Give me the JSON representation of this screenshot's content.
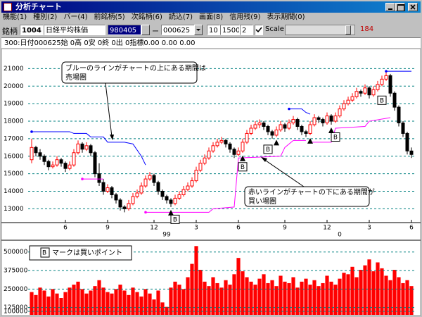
{
  "window": {
    "title": "分析チャート"
  },
  "menu": [
    "機能(1)",
    "種別(2)",
    "バー(4)",
    "前銘柄(5)",
    "次銘柄(6)",
    "読込(7)",
    "画面(8)",
    "信用残(9)",
    "表示期間(0)"
  ],
  "toolbar": {
    "code_label": "銘柄",
    "code": "1004",
    "name": "日経平均株価",
    "date_from": "980405",
    "dash": "ー",
    "date_to": "000625",
    "n1": "10",
    "n2": "1500",
    "n3": "2",
    "scale": "Scale",
    "count": "184"
  },
  "info": "300:日付000625始 0高 0安 0終 0出 0指標0.00  0.00  0.00",
  "annotations": [
    {
      "lines": [
        "ブルーのラインがチャートの上にある期間は",
        "売場圏"
      ]
    },
    {
      "lines": [
        "赤いラインがチャートの下にある期間が",
        "買い場圏"
      ]
    }
  ],
  "chart_data": [
    {
      "type": "candlestick",
      "up_color": "#ff0000",
      "down_color": "#000000",
      "grid": true,
      "ylim": [
        12250,
        21500
      ],
      "yticks": [
        13000,
        14000,
        15000,
        16000,
        17000,
        18000,
        19000,
        20000,
        21000
      ],
      "xlim": [
        0,
        90
      ],
      "xticks": [
        {
          "value": 8,
          "label": "6"
        },
        {
          "value": 18,
          "label": "9"
        },
        {
          "value": 29,
          "label": "12"
        },
        {
          "value": 39,
          "label": "3"
        },
        {
          "value": 49,
          "label": "6"
        },
        {
          "value": 60,
          "label": "9"
        },
        {
          "value": 70,
          "label": "12"
        },
        {
          "value": 80,
          "label": "3"
        },
        {
          "value": 90,
          "label": "6"
        }
      ],
      "year_ticks": [
        {
          "value": 32,
          "label": "99"
        },
        {
          "value": 73,
          "label": "0"
        }
      ],
      "ohlc": [
        [
          15800,
          17000,
          15600,
          16500
        ],
        [
          16500,
          16600,
          16000,
          16200
        ],
        [
          16200,
          16400,
          15800,
          16000
        ],
        [
          16000,
          16100,
          15500,
          15700
        ],
        [
          15700,
          15800,
          15200,
          15400
        ],
        [
          15400,
          15700,
          15300,
          15500
        ],
        [
          15500,
          16000,
          15400,
          15800
        ],
        [
          15800,
          15900,
          15400,
          15600
        ],
        [
          15600,
          15700,
          15100,
          15300
        ],
        [
          15300,
          15700,
          15200,
          15500
        ],
        [
          15500,
          16400,
          15400,
          16200
        ],
        [
          16200,
          16900,
          16100,
          16700
        ],
        [
          16700,
          16800,
          16200,
          16400
        ],
        [
          16400,
          16800,
          16300,
          16600
        ],
        [
          16600,
          16700,
          16000,
          16200
        ],
        [
          16200,
          16300,
          14800,
          15000
        ],
        [
          15000,
          15600,
          14300,
          14500
        ],
        [
          14500,
          14700,
          13800,
          14000
        ],
        [
          14000,
          14400,
          13900,
          14200
        ],
        [
          14200,
          14300,
          13600,
          13800
        ],
        [
          13800,
          13900,
          13300,
          13500
        ],
        [
          13500,
          13600,
          12900,
          13100
        ],
        [
          13100,
          13200,
          12800,
          13000
        ],
        [
          13000,
          13500,
          12900,
          13300
        ],
        [
          13300,
          13900,
          13200,
          13700
        ],
        [
          13700,
          14100,
          13600,
          13900
        ],
        [
          13900,
          14500,
          13800,
          14300
        ],
        [
          14300,
          14900,
          14200,
          14700
        ],
        [
          14700,
          15100,
          14600,
          14900
        ],
        [
          14900,
          15000,
          14300,
          14500
        ],
        [
          14500,
          14600,
          13800,
          14000
        ],
        [
          14000,
          14100,
          13500,
          13700
        ],
        [
          13700,
          13800,
          13300,
          13500
        ],
        [
          13500,
          13600,
          13100,
          13300
        ],
        [
          13300,
          13800,
          13200,
          13600
        ],
        [
          13600,
          14000,
          13500,
          13800
        ],
        [
          13800,
          14300,
          13700,
          14100
        ],
        [
          14100,
          14500,
          14000,
          14300
        ],
        [
          14300,
          14800,
          14200,
          14600
        ],
        [
          14600,
          15400,
          14500,
          15200
        ],
        [
          15200,
          15800,
          15100,
          15600
        ],
        [
          15600,
          16100,
          15500,
          15900
        ],
        [
          15900,
          16500,
          15800,
          16300
        ],
        [
          16300,
          16800,
          16200,
          16600
        ],
        [
          16600,
          17000,
          16500,
          16800
        ],
        [
          16800,
          17100,
          16700,
          16900
        ],
        [
          16900,
          17000,
          16500,
          16700
        ],
        [
          16700,
          16800,
          16200,
          16400
        ],
        [
          16400,
          16500,
          15900,
          16100
        ],
        [
          16100,
          16500,
          16000,
          16300
        ],
        [
          16300,
          17000,
          16200,
          16800
        ],
        [
          16800,
          17500,
          16700,
          17300
        ],
        [
          17300,
          17800,
          17200,
          17600
        ],
        [
          17600,
          18000,
          17500,
          17800
        ],
        [
          17800,
          18100,
          17600,
          17900
        ],
        [
          17900,
          18000,
          17500,
          17700
        ],
        [
          17700,
          17800,
          17200,
          17400
        ],
        [
          17400,
          17500,
          17000,
          17200
        ],
        [
          17200,
          17700,
          17100,
          17500
        ],
        [
          17500,
          18000,
          17400,
          17800
        ],
        [
          17800,
          17900,
          17400,
          17600
        ],
        [
          17600,
          18100,
          17500,
          17900
        ],
        [
          17900,
          18300,
          17800,
          18100
        ],
        [
          18100,
          18200,
          17500,
          17700
        ],
        [
          17700,
          17800,
          17200,
          17400
        ],
        [
          17400,
          17500,
          17100,
          17300
        ],
        [
          17300,
          18000,
          17200,
          17800
        ],
        [
          17800,
          18400,
          17700,
          18200
        ],
        [
          18200,
          18300,
          17900,
          18100
        ],
        [
          18100,
          18200,
          17700,
          17900
        ],
        [
          17900,
          18500,
          17800,
          18300
        ],
        [
          18300,
          18400,
          17800,
          18000
        ],
        [
          18000,
          18500,
          17900,
          18300
        ],
        [
          18300,
          18900,
          18200,
          18700
        ],
        [
          18700,
          19200,
          18600,
          19000
        ],
        [
          19000,
          19400,
          18900,
          19200
        ],
        [
          19200,
          19600,
          19100,
          19400
        ],
        [
          19400,
          19900,
          19300,
          19700
        ],
        [
          19700,
          19800,
          19400,
          19600
        ],
        [
          19600,
          20100,
          19500,
          19900
        ],
        [
          19900,
          20000,
          19300,
          19500
        ],
        [
          19500,
          20000,
          19400,
          19800
        ],
        [
          19800,
          20300,
          19700,
          20100
        ],
        [
          20100,
          20600,
          20000,
          20400
        ],
        [
          20400,
          20900,
          20300,
          20600
        ],
        [
          20600,
          20700,
          19400,
          19600
        ],
        [
          19600,
          19700,
          18600,
          18800
        ],
        [
          18800,
          18900,
          17700,
          17900
        ],
        [
          17900,
          18000,
          17100,
          17300
        ],
        [
          17300,
          17400,
          16100,
          16300
        ],
        [
          16300,
          16500,
          15900,
          16100
        ]
      ],
      "series": [
        {
          "color": "#0000ff",
          "x": [
            0,
            9,
            10,
            13,
            14,
            17,
            18,
            22,
            24,
            26,
            27
          ],
          "values": [
            17400,
            17400,
            17300,
            17300,
            17100,
            17100,
            16800,
            16800,
            16700,
            16000,
            15500
          ]
        },
        {
          "color": "#0000ff",
          "x": [
            61,
            64,
            65,
            66
          ],
          "values": [
            18700,
            18700,
            18500,
            18400
          ]
        },
        {
          "color": "#0000ff",
          "x": [
            84,
            90
          ],
          "values": [
            20850,
            20850
          ]
        },
        {
          "color": "#ff00ff",
          "x": [
            12,
            17
          ],
          "values": [
            14700,
            14700
          ]
        },
        {
          "color": "#ff00ff",
          "x": [
            27,
            42,
            43,
            48,
            49,
            59,
            60,
            62,
            65
          ],
          "values": [
            12800,
            12800,
            13000,
            13100,
            15900,
            16000,
            16500,
            16900,
            16900
          ]
        },
        {
          "color": "#ff00ff",
          "x": [
            66,
            71,
            72,
            79,
            80,
            85
          ],
          "values": [
            16800,
            16800,
            17600,
            17700,
            18000,
            18200
          ]
        }
      ],
      "buy_marker": "B",
      "buy_points": [
        34,
        50,
        56,
        72,
        83
      ],
      "signal_points": [
        33,
        50,
        58,
        66,
        71
      ]
    },
    {
      "type": "bar",
      "color": "#ff0000",
      "grid": true,
      "ylim": [
        95000,
        570000
      ],
      "yticks": [
        100000,
        125000,
        250000,
        375000,
        500000
      ],
      "legend_marker": "B",
      "legend_text": "マークは買いポイント",
      "values": [
        230000,
        210000,
        260000,
        240000,
        200000,
        250000,
        220000,
        190000,
        230000,
        260000,
        280000,
        300000,
        250000,
        220000,
        240000,
        270000,
        310000,
        260000,
        230000,
        220000,
        250000,
        280000,
        240000,
        210000,
        260000,
        230000,
        200000,
        250000,
        220000,
        180000,
        240000,
        160000,
        130000,
        260000,
        300000,
        280000,
        250000,
        330000,
        420000,
        540000,
        380000,
        300000,
        270000,
        330000,
        290000,
        260000,
        310000,
        280000,
        350000,
        460000,
        370000,
        330000,
        300000,
        280000,
        320000,
        350000,
        290000,
        310000,
        270000,
        340000,
        300000,
        290000,
        330000,
        260000,
        300000,
        320000,
        280000,
        310000,
        270000,
        290000,
        340000,
        300000,
        280000,
        320000,
        360000,
        350000,
        400000,
        330000,
        380000,
        410000,
        450000,
        370000,
        430000,
        390000,
        340000,
        310000,
        380000,
        330000,
        290000,
        310000,
        270000
      ]
    }
  ]
}
